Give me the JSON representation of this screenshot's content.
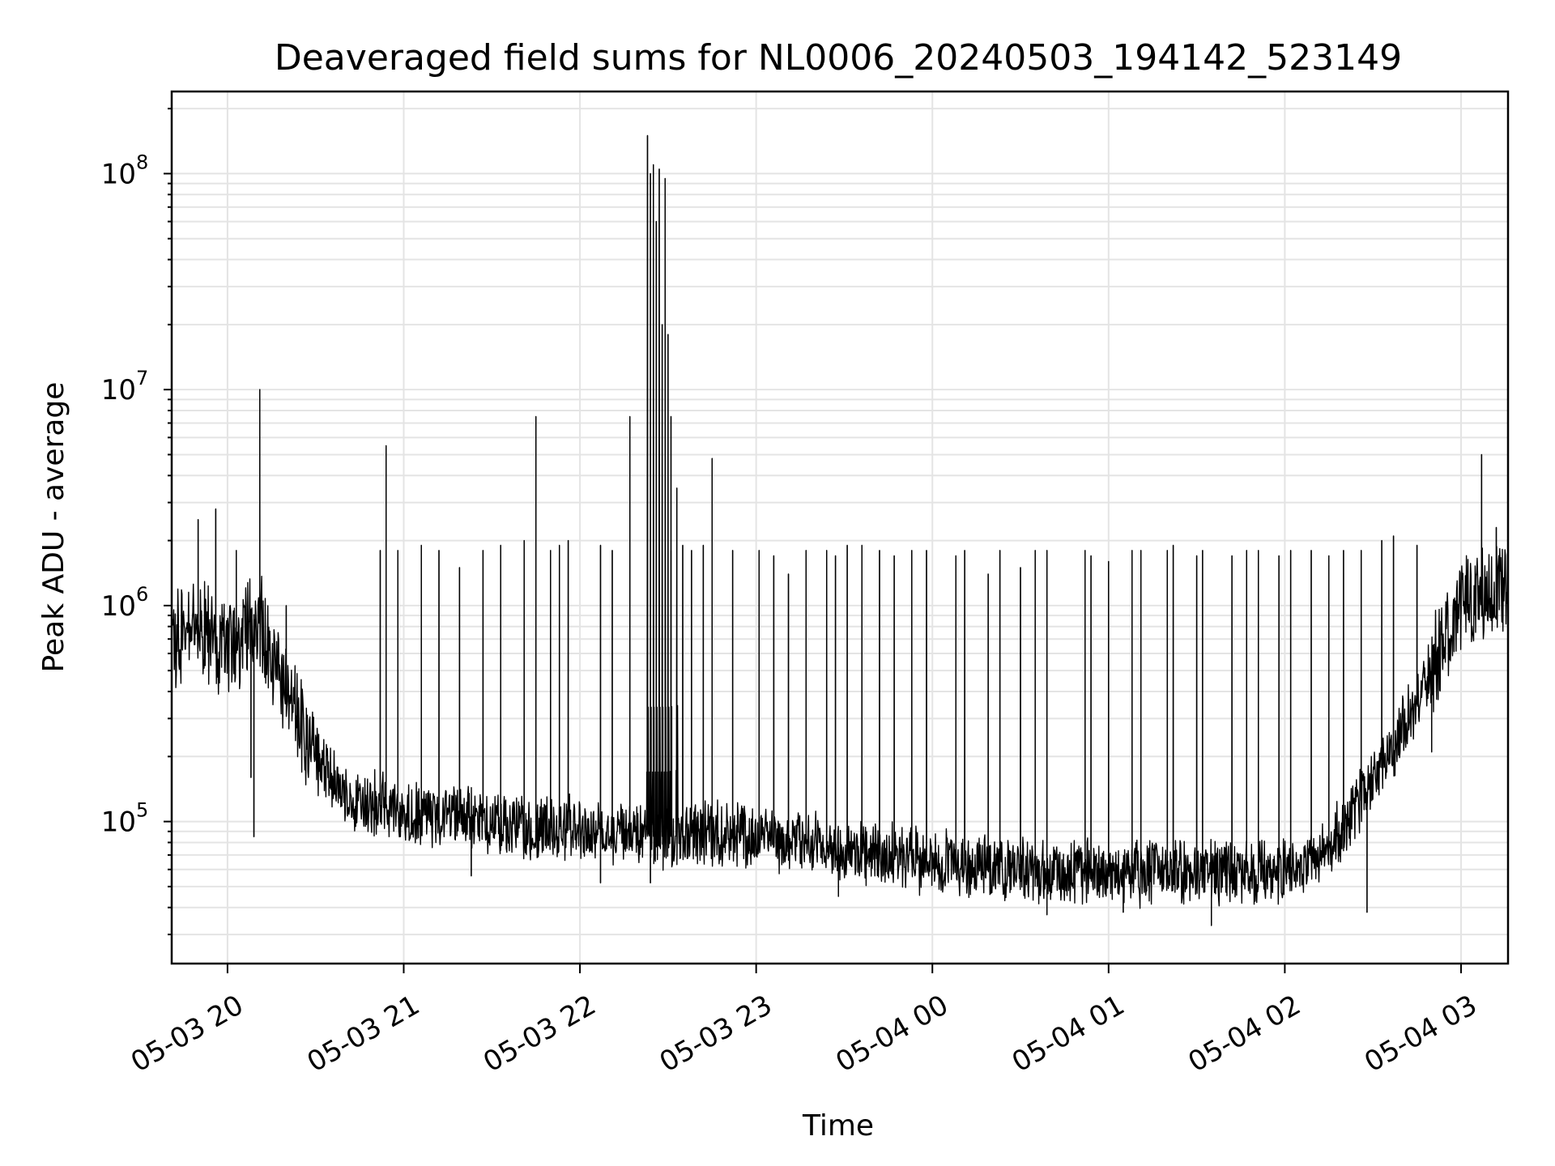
{
  "chart_data": {
    "type": "line",
    "title": "Deaveraged field sums for NL0006_20240503_194142_523149",
    "xlabel": "Time",
    "ylabel": "Peak ADU - average",
    "x_scale": "time",
    "y_scale": "log",
    "xlim": [
      "2024-05-03 19:41",
      "2024-05-04 03:16"
    ],
    "ylim": [
      22000,
      240000000
    ],
    "grid": true,
    "line_color": "#000000",
    "x_ticks": [
      "2024-05-03 20:00",
      "2024-05-03 21:00",
      "2024-05-03 22:00",
      "2024-05-03 23:00",
      "2024-05-04 00:00",
      "2024-05-04 01:00",
      "2024-05-04 02:00",
      "2024-05-04 03:00"
    ],
    "x_tick_labels": [
      "05-03 20",
      "05-03 21",
      "05-03 22",
      "05-03 23",
      "05-04 00",
      "05-04 01",
      "05-04 02",
      "05-04 03"
    ],
    "y_ticks": [
      100000,
      1000000,
      10000000,
      100000000
    ],
    "y_tick_labels": [
      {
        "base": "10",
        "exp": "5"
      },
      {
        "base": "10",
        "exp": "6"
      },
      {
        "base": "10",
        "exp": "7"
      },
      {
        "base": "10",
        "exp": "8"
      }
    ],
    "baseline": {
      "x": [
        "19:42",
        "19:50",
        "20:00",
        "20:10",
        "20:20",
        "20:30",
        "20:40",
        "21:00",
        "21:30",
        "22:00",
        "22:20",
        "22:30",
        "22:40",
        "23:00",
        "23:30",
        "00:00",
        "00:30",
        "01:00",
        "01:30",
        "02:00",
        "02:15",
        "02:30",
        "02:45",
        "03:00",
        "03:16"
      ],
      "y": [
        700000,
        800000,
        600000,
        900000,
        400000,
        200000,
        130000,
        110000,
        100000,
        90000,
        85000,
        85000,
        90000,
        85000,
        75000,
        65000,
        60000,
        58000,
        58000,
        58000,
        75000,
        150000,
        350000,
        1000000,
        1200000
      ]
    },
    "spikes": {
      "x": [
        "19:50",
        "19:56",
        "20:03",
        "20:11",
        "20:20",
        "20:52",
        "20:54",
        "20:58",
        "21:06",
        "21:12",
        "21:19",
        "21:27",
        "21:33",
        "21:41",
        "21:45",
        "21:50",
        "21:53",
        "21:56",
        "22:07",
        "22:11",
        "22:17",
        "22:26",
        "22:31",
        "22:35",
        "22:38",
        "22:42",
        "22:45",
        "22:52",
        "23:01",
        "23:06",
        "23:11",
        "23:17",
        "23:24",
        "23:27",
        "23:31",
        "23:36",
        "23:42",
        "23:47",
        "23:53",
        "23:58",
        "00:08",
        "00:11",
        "00:19",
        "00:23",
        "00:30",
        "00:35",
        "00:39",
        "00:52",
        "00:54",
        "01:00",
        "01:08",
        "01:11",
        "01:20",
        "01:22",
        "01:30",
        "01:32",
        "01:42",
        "01:47",
        "01:51",
        "01:58",
        "02:02",
        "02:09",
        "02:15",
        "02:20",
        "02:26",
        "02:33",
        "02:37",
        "02:45",
        "03:07",
        "03:12"
      ],
      "y": [
        2500000,
        2800000,
        1800000,
        10000000,
        1000000,
        1800000,
        5500000,
        1800000,
        1900000,
        1800000,
        1500000,
        1800000,
        1900000,
        2000000,
        7500000,
        1800000,
        1900000,
        2000000,
        1900000,
        1800000,
        7500000,
        1800000,
        1800000,
        1900000,
        1800000,
        1900000,
        4800000,
        1800000,
        1800000,
        1700000,
        1400000,
        1800000,
        1800000,
        1700000,
        1900000,
        1900000,
        1800000,
        1700000,
        1800000,
        1800000,
        1700000,
        1800000,
        1400000,
        1800000,
        1500000,
        1800000,
        1800000,
        1800000,
        1700000,
        1600000,
        1800000,
        1800000,
        1800000,
        1900000,
        1700000,
        1800000,
        1700000,
        1800000,
        1800000,
        1700000,
        1800000,
        1800000,
        1700000,
        1800000,
        1800000,
        2000000,
        2100000,
        1900000,
        5000000,
        2300000
      ]
    },
    "burst": {
      "x": [
        "22:23",
        "22:24",
        "22:25",
        "22:26",
        "22:27",
        "22:28",
        "22:29",
        "22:30",
        "22:31",
        "22:33"
      ],
      "y": [
        150000000,
        100000000,
        110000000,
        60000000,
        105000000,
        20000000,
        95000000,
        18000000,
        7500000,
        3500000
      ]
    },
    "dips": {
      "x": [
        "20:09",
        "20:08",
        "20:47",
        "21:23",
        "22:07",
        "22:24",
        "23:28",
        "00:39",
        "01:05",
        "01:35",
        "02:28",
        "02:50"
      ],
      "y": [
        85000,
        160000,
        95000,
        56000,
        52000,
        52000,
        45000,
        37000,
        38000,
        33000,
        38000,
        210000
      ]
    }
  }
}
